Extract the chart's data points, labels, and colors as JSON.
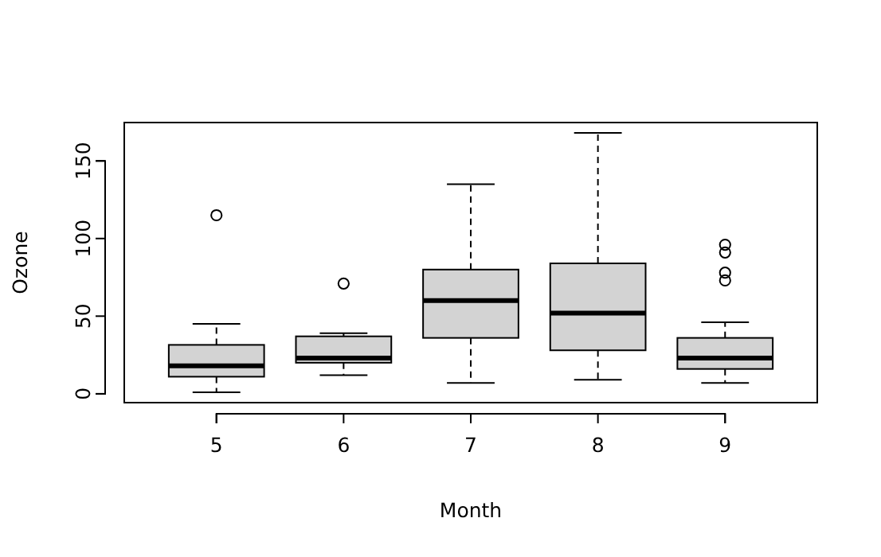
{
  "chart_data": {
    "type": "box",
    "xlabel": "Month",
    "ylabel": "Ozone",
    "categories": [
      "5",
      "6",
      "7",
      "8",
      "9"
    ],
    "color": "#d3d3d3",
    "ylim": [
      -5.7,
      174.7
    ],
    "yticks": [
      0,
      50,
      100,
      150
    ],
    "grid": false,
    "line_style": "dashed",
    "boxes": [
      {
        "low": 1,
        "q1": 11,
        "median": 18,
        "q3": 31.5,
        "high": 45,
        "outliers": [
          115
        ]
      },
      {
        "low": 12,
        "q1": 20,
        "median": 23,
        "q3": 37,
        "high": 39,
        "outliers": [
          71
        ]
      },
      {
        "low": 7,
        "q1": 36,
        "median": 60,
        "q3": 80,
        "high": 135
      },
      {
        "low": 9,
        "q1": 28,
        "median": 52,
        "q3": 84,
        "high": 168
      },
      {
        "low": 7,
        "q1": 16,
        "median": 23,
        "q3": 36,
        "high": 46,
        "outliers": [
          96,
          91,
          78,
          73
        ]
      }
    ]
  }
}
